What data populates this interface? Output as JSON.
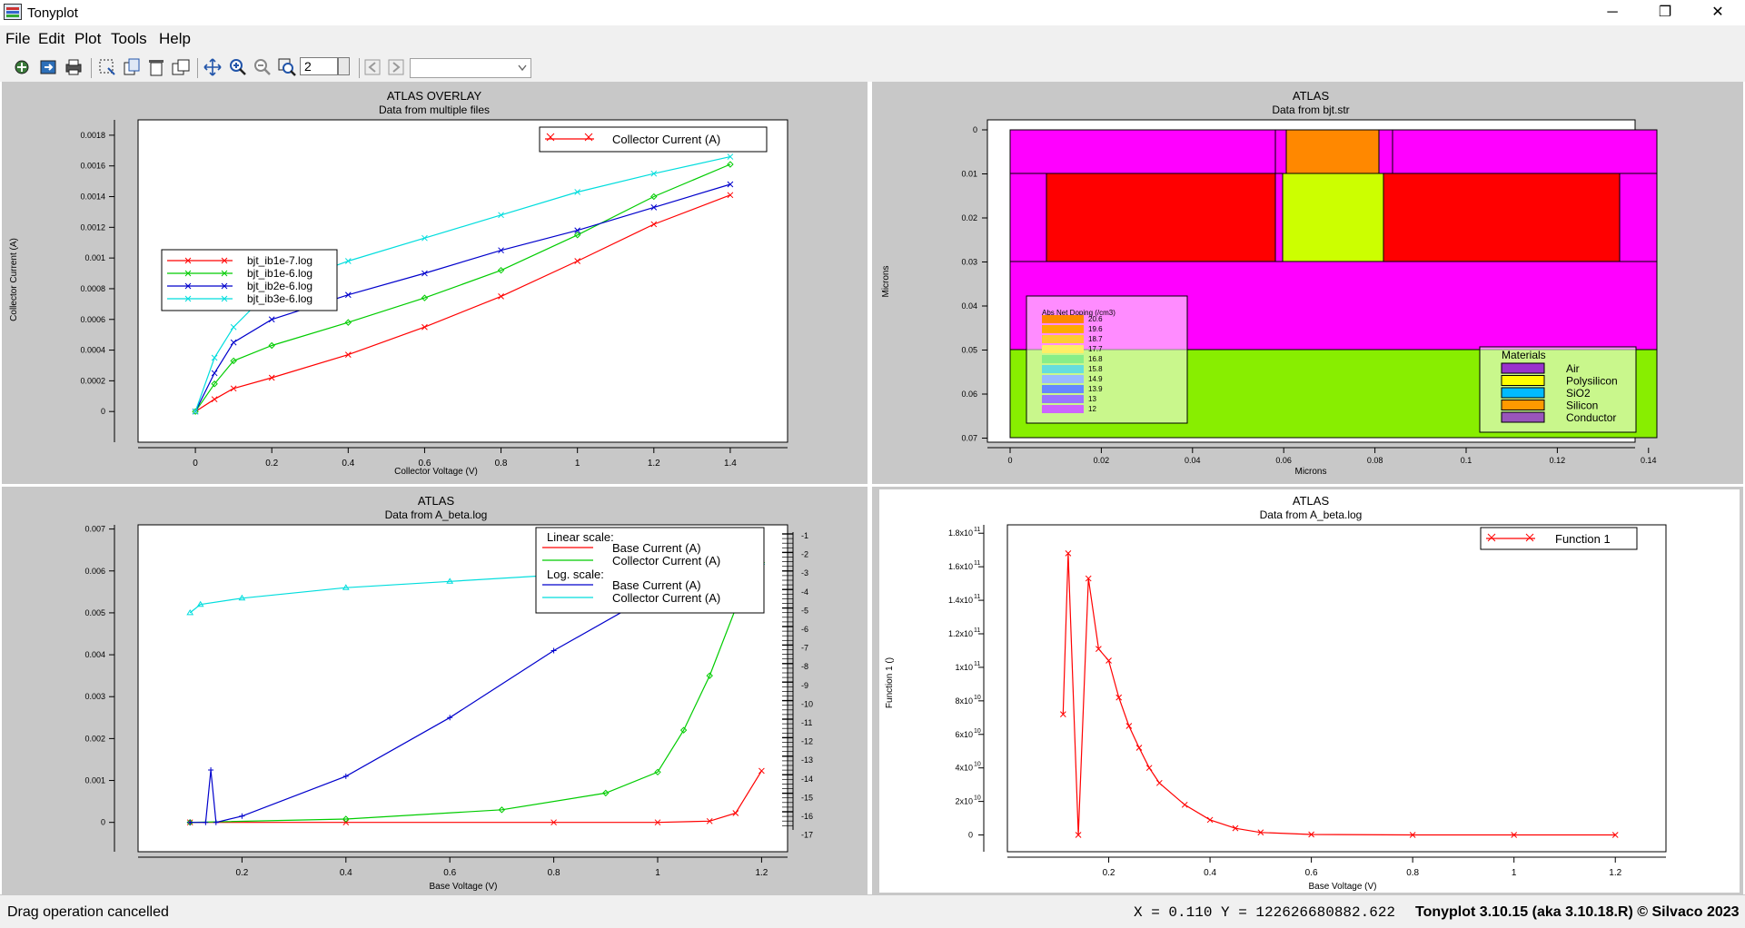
{
  "window": {
    "title": "Tonyplot",
    "controls": {
      "minimize": "─",
      "maximize": "❐",
      "close": "✕"
    }
  },
  "menu": [
    "File",
    "Edit",
    "Plot",
    "Tools",
    "Help"
  ],
  "toolbar": {
    "zoom_value": "2",
    "icons": [
      "open-icon",
      "import-icon",
      "print-icon",
      "select-icon",
      "copy-icon",
      "delete-icon",
      "duplicate-icon",
      "pan-icon",
      "zoom-in-icon",
      "zoom-out-icon",
      "zoom-window-icon",
      "spin-icon",
      "prev-icon",
      "next-icon"
    ]
  },
  "panels": {
    "overlay": {
      "title": "ATLAS OVERLAY",
      "subtitle": "Data from multiple files",
      "xlabel": "Collector Voltage (V)",
      "ylabel": "Collector Current (A)",
      "legend_top": "Collector Current (A)",
      "files": [
        "bjt_ib1e-7.log",
        "bjt_ib1e-6.log",
        "bjt_ib2e-6.log",
        "bjt_ib3e-6.log"
      ],
      "colors": [
        "#ff0000",
        "#00cc00",
        "#0000cc",
        "#00dddd"
      ]
    },
    "structure": {
      "title": "ATLAS",
      "subtitle": "Data from bjt.str",
      "xlabel": "Microns",
      "ylabel": "Microns",
      "doping_title": "Abs Net Doping (/cm3)",
      "doping_levels": [
        "20.6",
        "19.6",
        "18.7",
        "17.7",
        "16.8",
        "15.8",
        "14.9",
        "13.9",
        "13",
        "12"
      ],
      "materials_title": "Materials",
      "materials": [
        {
          "name": "Air",
          "color": "#9933cc"
        },
        {
          "name": "Polysilicon",
          "color": "#ffff00"
        },
        {
          "name": "SiO2",
          "color": "#00bbff"
        },
        {
          "name": "Silicon",
          "color": "#ff9900"
        },
        {
          "name": "Conductor",
          "color": "#9955bb"
        }
      ]
    },
    "beta": {
      "title": "ATLAS",
      "subtitle": "Data from A_beta.log",
      "xlabel": "Base Voltage (V)",
      "legend": {
        "linear": "Linear scale:",
        "log": "Log. scale:",
        "base": "Base Current (A)",
        "collector": "Collector Current (A)"
      }
    },
    "function": {
      "title": "ATLAS",
      "subtitle": "Data from A_beta.log",
      "xlabel": "Base Voltage (V)",
      "ylabel": "Function 1 ()",
      "legend": "Function 1"
    }
  },
  "chart_data": [
    {
      "type": "line",
      "title": "ATLAS OVERLAY",
      "subtitle": "Data from multiple files",
      "xlabel": "Collector Voltage (V)",
      "ylabel": "Collector Current (A)",
      "xlim": [
        -0.15,
        1.55
      ],
      "ylim": [
        -0.0002,
        0.0019
      ],
      "xticks": [
        "0",
        "0.2",
        "0.4",
        "0.6",
        "0.8",
        "1",
        "1.2",
        "1.4"
      ],
      "yticks": [
        "0",
        "0.0002",
        "0.0004",
        "0.0006",
        "0.0008",
        "0.001",
        "0.0012",
        "0.0014",
        "0.0016",
        "0.0018"
      ],
      "series": [
        {
          "name": "bjt_ib1e-7.log",
          "x": [
            0,
            0.05,
            0.1,
            0.2,
            0.4,
            0.6,
            0.8,
            1.0,
            1.2,
            1.4
          ],
          "y": [
            0,
            8e-05,
            0.00015,
            0.00022,
            0.00037,
            0.00055,
            0.00075,
            0.00098,
            0.00122,
            0.00141
          ]
        },
        {
          "name": "bjt_ib1e-6.log",
          "x": [
            0,
            0.05,
            0.1,
            0.2,
            0.4,
            0.6,
            0.8,
            1.0,
            1.2,
            1.4
          ],
          "y": [
            0,
            0.00018,
            0.00033,
            0.00043,
            0.00058,
            0.00074,
            0.00092,
            0.00115,
            0.0014,
            0.00161
          ]
        },
        {
          "name": "bjt_ib2e-6.log",
          "x": [
            0,
            0.05,
            0.1,
            0.2,
            0.4,
            0.6,
            0.8,
            1.0,
            1.2,
            1.4
          ],
          "y": [
            0,
            0.00025,
            0.00045,
            0.0006,
            0.00076,
            0.0009,
            0.00105,
            0.00118,
            0.00133,
            0.00148
          ]
        },
        {
          "name": "bjt_ib3e-6.log",
          "x": [
            0,
            0.05,
            0.1,
            0.2,
            0.4,
            0.6,
            0.8,
            1.0,
            1.2,
            1.4
          ],
          "y": [
            0,
            0.00035,
            0.00055,
            0.0008,
            0.00098,
            0.00113,
            0.00128,
            0.00143,
            0.00155,
            0.00166
          ]
        }
      ]
    },
    {
      "type": "line",
      "title": "ATLAS",
      "subtitle": "Data from A_beta.log",
      "xlabel": "Base Voltage (V)",
      "xlim": [
        0.0,
        1.25
      ],
      "ylim": [
        -0.0007,
        0.0071
      ],
      "xticks": [
        "0.2",
        "0.4",
        "0.6",
        "0.8",
        "1",
        "1.2"
      ],
      "yticks": [
        "0",
        "0.001",
        "0.002",
        "0.003",
        "0.004",
        "0.005",
        "0.006",
        "0.007"
      ],
      "y2ticks": [
        "-1",
        "-2",
        "-3",
        "-4",
        "-5",
        "-6",
        "-7",
        "-8",
        "-9",
        "-10",
        "-11",
        "-12",
        "-13",
        "-14",
        "-15",
        "-16",
        "-17"
      ],
      "series": [
        {
          "name": "Base Current (A)",
          "scale": "linear",
          "x": [
            0.1,
            0.4,
            0.8,
            1.0,
            1.1,
            1.15,
            1.2
          ],
          "y": [
            0,
            0,
            0,
            0,
            3e-05,
            0.00022,
            0.00123
          ]
        },
        {
          "name": "Collector Current (A)",
          "scale": "linear",
          "x": [
            0.1,
            0.4,
            0.7,
            0.9,
            1.0,
            1.05,
            1.1,
            1.15,
            1.2
          ],
          "y": [
            0,
            8e-05,
            0.0003,
            0.0007,
            0.0012,
            0.0022,
            0.0035,
            0.0051,
            0.0062
          ]
        },
        {
          "name": "Base Current (A)",
          "scale": "log",
          "x": [
            0.1,
            0.13,
            0.14,
            0.15,
            0.2,
            0.4,
            0.6,
            0.8,
            1.0,
            1.2
          ],
          "y": [
            0,
            0,
            0.00125,
            0,
            0.00015,
            0.0011,
            0.0025,
            0.0041,
            0.0055,
            0.0061
          ]
        },
        {
          "name": "Collector Current (A)",
          "scale": "log",
          "x": [
            0.1,
            0.12,
            0.2,
            0.4,
            0.6,
            0.8,
            1.0,
            1.2
          ],
          "y": [
            0.005,
            0.0052,
            0.00535,
            0.0056,
            0.00575,
            0.0059,
            0.00605,
            0.0062
          ]
        }
      ]
    },
    {
      "type": "line",
      "title": "ATLAS",
      "subtitle": "Data from A_beta.log",
      "xlabel": "Base Voltage (V)",
      "ylabel": "Function 1 ()",
      "xlim": [
        0.0,
        1.3
      ],
      "ylim": [
        -10000000000.0,
        185000000000.0
      ],
      "xticks": [
        "0.2",
        "0.4",
        "0.6",
        "0.8",
        "1",
        "1.2"
      ],
      "series": [
        {
          "name": "Function 1",
          "x": [
            0.11,
            0.12,
            0.14,
            0.16,
            0.18,
            0.2,
            0.22,
            0.24,
            0.26,
            0.28,
            0.3,
            0.35,
            0.4,
            0.45,
            0.5,
            0.6,
            0.8,
            1.0,
            1.2
          ],
          "y": [
            72000000000.0,
            168000000000.0,
            0,
            153000000000.0,
            111000000000.0,
            104000000000.0,
            82000000000.0,
            65000000000.0,
            52000000000.0,
            40000000000.0,
            31000000000.0,
            18000000000.0,
            9000000000.0,
            4000000000.0,
            1500000000.0,
            300000000.0,
            0,
            0,
            0
          ]
        }
      ]
    }
  ],
  "status": {
    "message": "Drag operation cancelled",
    "x": "X = 0.110",
    "y": "Y = 122626680882.622",
    "version": "Tonyplot 3.10.15 (aka 3.10.18.R) © Silvaco 2023"
  }
}
